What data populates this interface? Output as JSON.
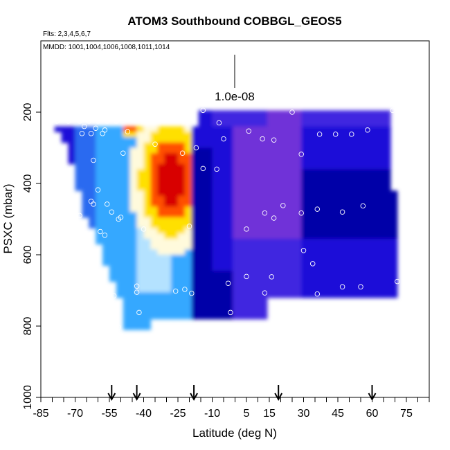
{
  "chart_data": {
    "type": "heatmap",
    "title": "ATOM3 Southbound COBBGL_GEOS5",
    "flights_label": "Flts: 2,3,4,5,6,7",
    "dates_label": "MMDD: 1001,1004,1006,1008,1011,1014",
    "xlabel": "Latitude (deg N)",
    "ylabel": "PSXC (mbar)",
    "xlim": [
      -85,
      85
    ],
    "ylim": [
      1000,
      0
    ],
    "x_ticks": [
      -85,
      -70,
      -55,
      -40,
      -25,
      -10,
      5,
      15,
      30,
      45,
      60,
      75
    ],
    "y_ticks": [
      200,
      400,
      600,
      800,
      1000
    ],
    "scale_bar_label": "1.0e-08",
    "arrow_latitudes": [
      -54,
      -43,
      -18,
      19,
      60
    ],
    "color_scale": [
      "#0000a8",
      "#1a10d8",
      "#3f28e0",
      "#7030d8",
      "#2a6af0",
      "#35a8ff",
      "#b4e2ff",
      "#fffadc",
      "#ffe000",
      "#ff5000",
      "#d80000"
    ],
    "points": [
      [
        -78,
        225
      ],
      [
        -73,
        225
      ],
      [
        -68,
        225
      ],
      [
        -64,
        225
      ],
      [
        -60,
        225
      ],
      [
        -56,
        225
      ],
      [
        -52,
        225
      ],
      [
        -66,
        240
      ],
      [
        -61,
        245
      ],
      [
        -57,
        250
      ],
      [
        -67,
        260
      ],
      [
        -63,
        260
      ],
      [
        -58,
        260
      ],
      [
        -47,
        255
      ],
      [
        -62,
        335
      ],
      [
        -49,
        315
      ],
      [
        -60,
        418
      ],
      [
        -63,
        450
      ],
      [
        -62,
        458
      ],
      [
        -56,
        458
      ],
      [
        -68,
        490
      ],
      [
        -73,
        500
      ],
      [
        -54,
        480
      ],
      [
        -51,
        500
      ],
      [
        -50,
        495
      ],
      [
        -59,
        535
      ],
      [
        -57,
        545
      ],
      [
        -40,
        528
      ],
      [
        -35,
        290
      ],
      [
        -23,
        315
      ],
      [
        -17,
        300
      ],
      [
        -14,
        358
      ],
      [
        -8,
        360
      ],
      [
        -20,
        520
      ],
      [
        -14,
        195
      ],
      [
        -7,
        230
      ],
      [
        -5,
        275
      ],
      [
        6,
        253
      ],
      [
        12,
        275
      ],
      [
        17,
        278
      ],
      [
        29,
        318
      ],
      [
        37,
        262
      ],
      [
        44,
        262
      ],
      [
        51,
        262
      ],
      [
        58,
        250
      ],
      [
        69,
        195
      ],
      [
        25,
        200
      ],
      [
        5,
        528
      ],
      [
        13,
        483
      ],
      [
        17,
        497
      ],
      [
        21,
        462
      ],
      [
        29,
        483
      ],
      [
        36,
        472
      ],
      [
        47,
        480
      ],
      [
        56,
        463
      ],
      [
        30,
        588
      ],
      [
        34,
        625
      ],
      [
        -3,
        680
      ],
      [
        5,
        661
      ],
      [
        16,
        662
      ],
      [
        13,
        707
      ],
      [
        36,
        710
      ],
      [
        47,
        690
      ],
      [
        55,
        690
      ],
      [
        71,
        675
      ],
      [
        -66,
        668
      ],
      [
        -56,
        697
      ],
      [
        -53,
        715
      ],
      [
        -43,
        688
      ],
      [
        -43,
        705
      ],
      [
        -26,
        702
      ],
      [
        -22,
        697
      ],
      [
        -19,
        708
      ],
      [
        -42,
        762
      ],
      [
        -51,
        803
      ],
      [
        -2,
        762
      ],
      [
        -66,
        625
      ]
    ]
  }
}
